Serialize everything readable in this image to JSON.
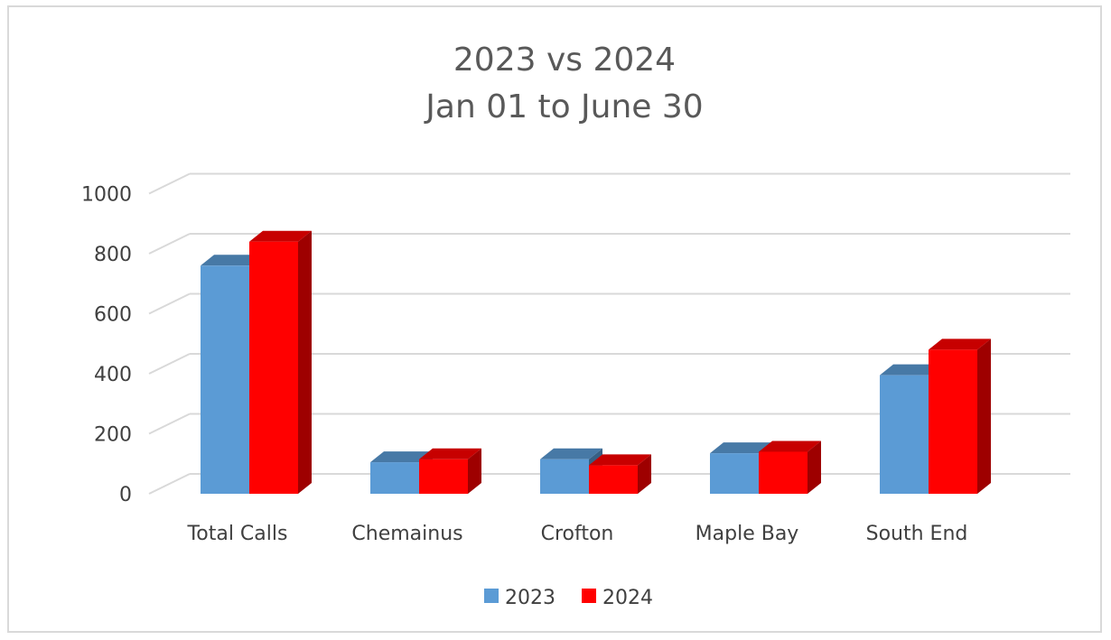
{
  "chart_data": {
    "type": "bar",
    "style": "3d-clustered-column",
    "title": "2023 vs 2024",
    "subtitle": "Jan 01 to June 30",
    "categories": [
      "Total Calls",
      "Chemainus",
      "Crofton",
      "Maple Bay",
      "South End"
    ],
    "series": [
      {
        "name": "2023",
        "values": [
          760,
          105,
          115,
          135,
          395
        ],
        "color": "#5B9BD5"
      },
      {
        "name": "2024",
        "values": [
          840,
          115,
          95,
          140,
          480
        ],
        "color": "#FF0000"
      }
    ],
    "ylim": [
      0,
      1000
    ],
    "yticks": [
      0,
      200,
      400,
      600,
      800,
      1000
    ],
    "xlabel": "",
    "ylabel": "",
    "grid": true,
    "legend_position": "bottom"
  }
}
